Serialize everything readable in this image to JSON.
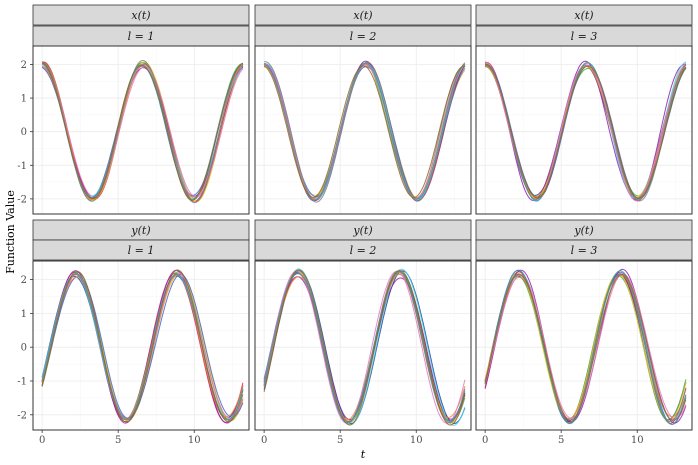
{
  "chart_data": {
    "type": "line",
    "xlabel": "t",
    "ylabel": "Function Value",
    "xlim": [
      -0.6,
      13.6
    ],
    "ylim": [
      -2.45,
      2.55
    ],
    "x_ticks": [
      0,
      5,
      10
    ],
    "y_ticks": [
      2,
      1,
      0,
      -1,
      -2
    ],
    "y_tick_labels": [
      "2",
      "1",
      "0",
      "-1",
      "-2"
    ],
    "grid": true,
    "legend": "none",
    "series_colors": [
      "#1f3d99",
      "#e6194b",
      "#3cb44b",
      "#f0c20a",
      "#4363d8",
      "#911eb4",
      "#42d4f4",
      "#f58231",
      "#e377c2",
      "#7f7f7f",
      "#469990",
      "#9a6324",
      "#bcbd22",
      "#17becf",
      "#000075"
    ],
    "panels": [
      {
        "strip_top": "x(t)",
        "strip_bottom": "l = 1",
        "func": "x",
        "l": 1
      },
      {
        "strip_top": "x(t)",
        "strip_bottom": "l = 2",
        "func": "x",
        "l": 2
      },
      {
        "strip_top": "x(t)",
        "strip_bottom": "l = 3",
        "func": "x",
        "l": 3
      },
      {
        "strip_top": "y(t)",
        "strip_bottom": "l = 1",
        "func": "y",
        "l": 1
      },
      {
        "strip_top": "y(t)",
        "strip_bottom": "l = 2",
        "func": "y",
        "l": 2
      },
      {
        "strip_top": "y(t)",
        "strip_bottom": "l = 3",
        "func": "y",
        "l": 3
      }
    ],
    "curve_model": {
      "x": {
        "amplitude": 2.0,
        "omega": 0.94,
        "phase": 0.0,
        "form": "cos"
      },
      "y": {
        "amplitude": 2.2,
        "omega": 0.94,
        "phase": 0.0,
        "form": "sin",
        "offset": -1.1
      },
      "t_range": [
        0,
        13.2
      ],
      "curves_per_panel": 12
    }
  }
}
